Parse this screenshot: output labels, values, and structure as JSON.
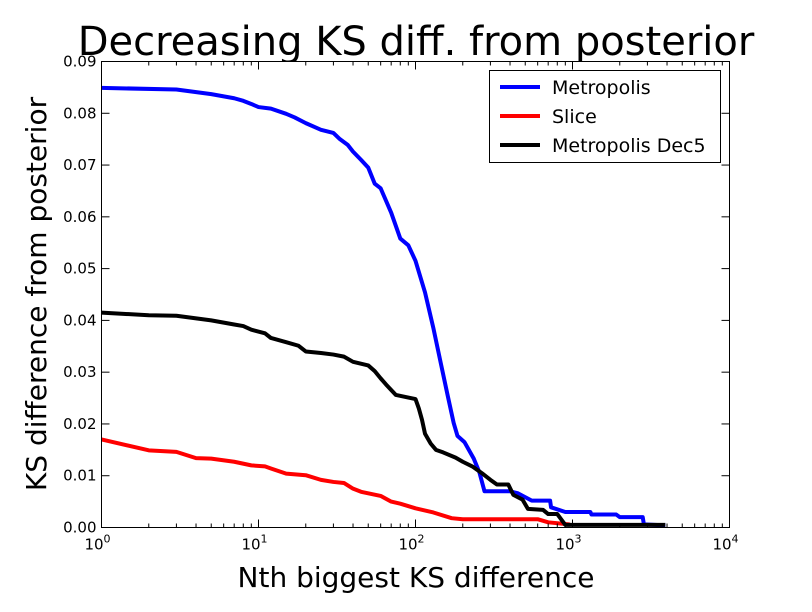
{
  "chart_data": {
    "type": "line",
    "title": "Decreasing KS diff. from posterior",
    "xlabel": "Nth biggest KS difference",
    "ylabel": "KS difference from posterior",
    "xscale": "log",
    "xlim": [
      1,
      10000
    ],
    "ylim": [
      0,
      0.09
    ],
    "x_ticks": [
      {
        "base": "10",
        "exp": "0",
        "value": 1
      },
      {
        "base": "10",
        "exp": "1",
        "value": 10
      },
      {
        "base": "10",
        "exp": "2",
        "value": 100
      },
      {
        "base": "10",
        "exp": "3",
        "value": 1000
      },
      {
        "base": "10",
        "exp": "4",
        "value": 10000
      }
    ],
    "y_ticks": [
      {
        "label": "0.00",
        "value": 0.0
      },
      {
        "label": "0.01",
        "value": 0.01
      },
      {
        "label": "0.02",
        "value": 0.02
      },
      {
        "label": "0.03",
        "value": 0.03
      },
      {
        "label": "0.04",
        "value": 0.04
      },
      {
        "label": "0.05",
        "value": 0.05
      },
      {
        "label": "0.06",
        "value": 0.06
      },
      {
        "label": "0.07",
        "value": 0.07
      },
      {
        "label": "0.08",
        "value": 0.08
      },
      {
        "label": "0.09",
        "value": 0.09
      }
    ],
    "grid": false,
    "legend_position": "top-right",
    "series": [
      {
        "name": "Metropolis",
        "color": "#0000ff",
        "points": [
          [
            1,
            0.0849
          ],
          [
            3,
            0.0846
          ],
          [
            5,
            0.0837
          ],
          [
            7,
            0.0829
          ],
          [
            8,
            0.0824
          ],
          [
            9,
            0.0818
          ],
          [
            10,
            0.0812
          ],
          [
            12,
            0.0809
          ],
          [
            15,
            0.0799
          ],
          [
            17,
            0.0792
          ],
          [
            20,
            0.0781
          ],
          [
            25,
            0.0768
          ],
          [
            30,
            0.0762
          ],
          [
            33,
            0.075
          ],
          [
            37,
            0.0739
          ],
          [
            40,
            0.0726
          ],
          [
            45,
            0.071
          ],
          [
            50,
            0.0695
          ],
          [
            55,
            0.0664
          ],
          [
            60,
            0.0655
          ],
          [
            70,
            0.0608
          ],
          [
            80,
            0.0558
          ],
          [
            90,
            0.0545
          ],
          [
            100,
            0.0515
          ],
          [
            115,
            0.0454
          ],
          [
            130,
            0.0385
          ],
          [
            145,
            0.0317
          ],
          [
            160,
            0.0256
          ],
          [
            175,
            0.0202
          ],
          [
            185,
            0.0177
          ],
          [
            205,
            0.0165
          ],
          [
            235,
            0.0133
          ],
          [
            255,
            0.0107
          ],
          [
            275,
            0.007
          ],
          [
            400,
            0.007
          ],
          [
            450,
            0.0066
          ],
          [
            550,
            0.0052
          ],
          [
            720,
            0.0052
          ],
          [
            730,
            0.0039
          ],
          [
            900,
            0.003
          ],
          [
            1300,
            0.003
          ],
          [
            1320,
            0.0025
          ],
          [
            1900,
            0.0025
          ],
          [
            2000,
            0.002
          ],
          [
            2800,
            0.002
          ],
          [
            2850,
            0.0006
          ],
          [
            3900,
            0.0004
          ]
        ]
      },
      {
        "name": "Slice",
        "color": "#ff0000",
        "points": [
          [
            1,
            0.017
          ],
          [
            2,
            0.0149
          ],
          [
            3,
            0.0146
          ],
          [
            4,
            0.0134
          ],
          [
            5,
            0.0133
          ],
          [
            7,
            0.0127
          ],
          [
            9,
            0.012
          ],
          [
            11,
            0.0118
          ],
          [
            12,
            0.0114
          ],
          [
            15,
            0.0104
          ],
          [
            20,
            0.0101
          ],
          [
            25,
            0.0092
          ],
          [
            30,
            0.0088
          ],
          [
            35,
            0.0086
          ],
          [
            40,
            0.0075
          ],
          [
            45,
            0.0069
          ],
          [
            60,
            0.0061
          ],
          [
            70,
            0.005
          ],
          [
            80,
            0.0046
          ],
          [
            100,
            0.0037
          ],
          [
            130,
            0.0029
          ],
          [
            170,
            0.0018
          ],
          [
            200,
            0.0016
          ],
          [
            600,
            0.0016
          ],
          [
            700,
            0.001
          ],
          [
            950,
            0.0006
          ],
          [
            960,
            0.0004
          ]
        ]
      },
      {
        "name": "Metropolis Dec5",
        "color": "#000000",
        "points": [
          [
            1,
            0.0415
          ],
          [
            2,
            0.041
          ],
          [
            3,
            0.0409
          ],
          [
            5,
            0.04
          ],
          [
            7,
            0.0392
          ],
          [
            8,
            0.0389
          ],
          [
            9,
            0.0382
          ],
          [
            11,
            0.0375
          ],
          [
            12,
            0.0366
          ],
          [
            15,
            0.0358
          ],
          [
            18,
            0.0351
          ],
          [
            20,
            0.034
          ],
          [
            25,
            0.0337
          ],
          [
            30,
            0.0334
          ],
          [
            35,
            0.033
          ],
          [
            40,
            0.032
          ],
          [
            50,
            0.0313
          ],
          [
            55,
            0.0302
          ],
          [
            60,
            0.0288
          ],
          [
            65,
            0.0276
          ],
          [
            75,
            0.0256
          ],
          [
            90,
            0.0251
          ],
          [
            100,
            0.0248
          ],
          [
            105,
            0.023
          ],
          [
            110,
            0.0208
          ],
          [
            115,
            0.0181
          ],
          [
            125,
            0.0162
          ],
          [
            135,
            0.015
          ],
          [
            150,
            0.0145
          ],
          [
            180,
            0.0135
          ],
          [
            200,
            0.0127
          ],
          [
            230,
            0.0118
          ],
          [
            270,
            0.0103
          ],
          [
            300,
            0.0092
          ],
          [
            330,
            0.0083
          ],
          [
            390,
            0.0083
          ],
          [
            420,
            0.0063
          ],
          [
            480,
            0.0054
          ],
          [
            520,
            0.0036
          ],
          [
            650,
            0.0034
          ],
          [
            700,
            0.0026
          ],
          [
            800,
            0.0026
          ],
          [
            900,
            0.0005
          ],
          [
            3900,
            0.0005
          ]
        ]
      }
    ]
  }
}
